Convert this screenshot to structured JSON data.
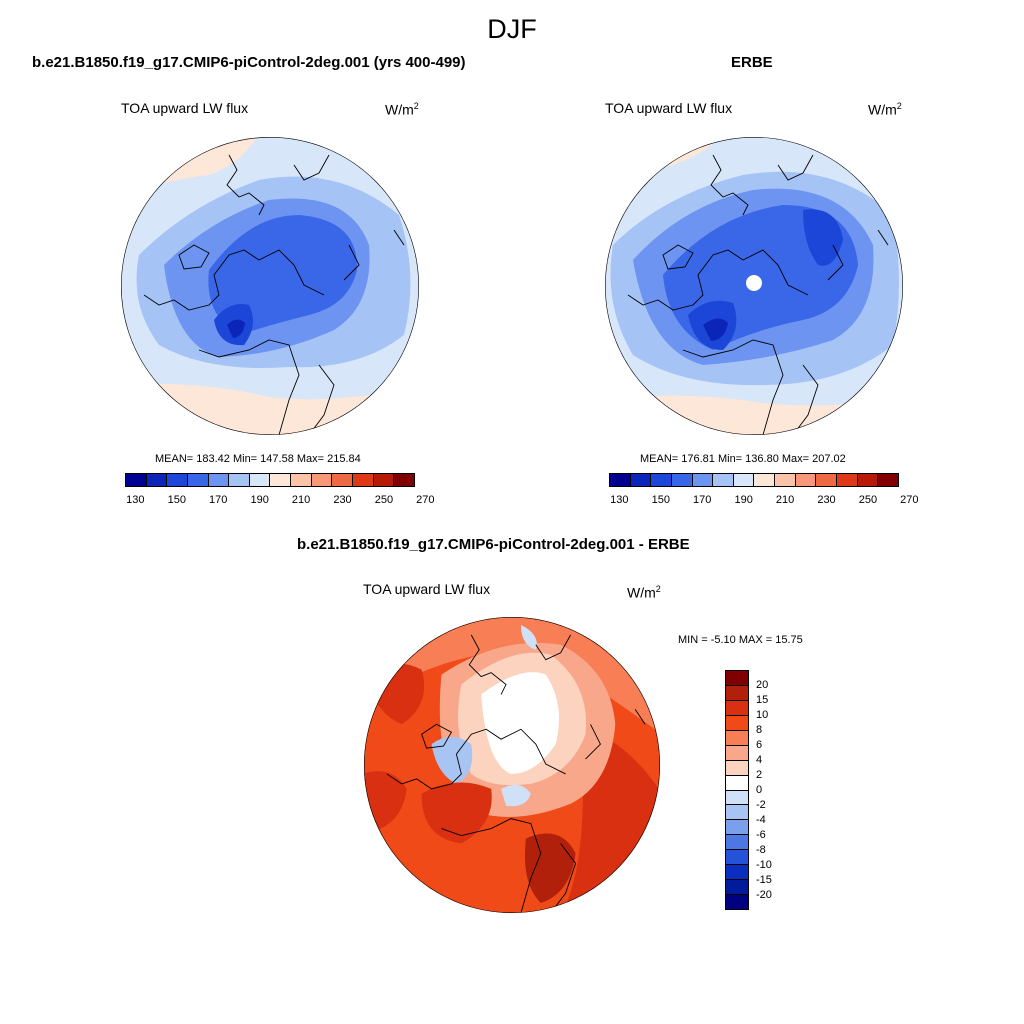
{
  "main_title": "DJF",
  "panel_model": {
    "header": "b.e21.B1850.f19_g17.CMIP6-piControl-2deg.001 (yrs 400-499)",
    "variable": "TOA upward LW flux",
    "units_base": "W/m",
    "units_exp": "2",
    "stats": "MEAN= 183.42  Min= 147.58  Max= 215.84"
  },
  "panel_obs": {
    "header": "ERBE",
    "variable": "TOA upward LW flux",
    "units_base": "W/m",
    "units_exp": "2",
    "stats": "MEAN= 176.81  Min= 136.80  Max= 207.02"
  },
  "panel_diff": {
    "header": "b.e21.B1850.f19_g17.CMIP6-piControl-2deg.001 - ERBE",
    "variable": "TOA upward LW flux",
    "units_base": "W/m",
    "units_exp": "2",
    "stats": "MIN =  -5.10 MAX =  15.75"
  },
  "colorbar_abs": {
    "colors": [
      "#000090",
      "#0a25b8",
      "#1c46d8",
      "#3a66e8",
      "#6c94f0",
      "#a6c3f5",
      "#d8e6fa",
      "#fde7d8",
      "#fbc3a8",
      "#f79878",
      "#ee6a45",
      "#de3a18",
      "#b81a08",
      "#800000"
    ],
    "labels": [
      "130",
      "150",
      "170",
      "190",
      "210",
      "230",
      "250",
      "270"
    ]
  },
  "colorbar_diff": {
    "colors": [
      "#800000",
      "#b0200a",
      "#d83010",
      "#f04a18",
      "#f77e55",
      "#f9a78a",
      "#fcd3bf",
      "#ffffff",
      "#cfe0f7",
      "#a8c4f2",
      "#7aa0ec",
      "#4c78e4",
      "#2553d8",
      "#0a2fbf",
      "#001c9a",
      "#000080"
    ],
    "labels": [
      "20",
      "15",
      "10",
      "8",
      "6",
      "4",
      "2",
      "0",
      "-2",
      "-4",
      "-6",
      "-8",
      "-10",
      "-15",
      "-20"
    ]
  }
}
